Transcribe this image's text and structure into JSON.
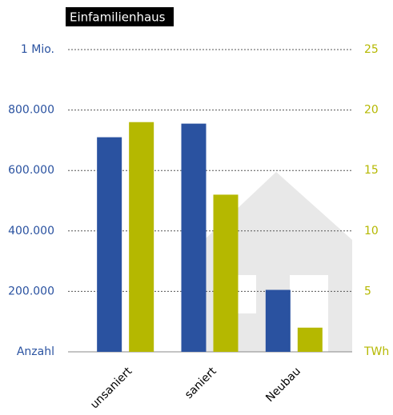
{
  "chart_data": {
    "type": "bar",
    "title": "Einfamilienhaus",
    "categories": [
      "unsaniert",
      "saniert",
      "Neubau"
    ],
    "series": [
      {
        "name": "Anzahl",
        "color": "#2a52a0",
        "values": [
          710000,
          755000,
          205000
        ]
      },
      {
        "name": "TWh",
        "color": "#b5b800",
        "values": [
          19,
          13,
          2
        ],
        "axis": "y2"
      }
    ],
    "ylim": [
      0,
      1000000
    ],
    "yticks": [
      {
        "value": 0,
        "label": "Anzahl"
      },
      {
        "value": 200000,
        "label": "200.000"
      },
      {
        "value": 400000,
        "label": "400.000"
      },
      {
        "value": 600000,
        "label": "600.000"
      },
      {
        "value": 800000,
        "label": "800.000"
      },
      {
        "value": 1000000,
        "label": "1 Mio."
      }
    ],
    "y2lim": [
      0,
      25
    ],
    "y2ticks": [
      {
        "value": 0,
        "label": "TWh"
      },
      5,
      10,
      15,
      20,
      25
    ],
    "grid": true
  }
}
